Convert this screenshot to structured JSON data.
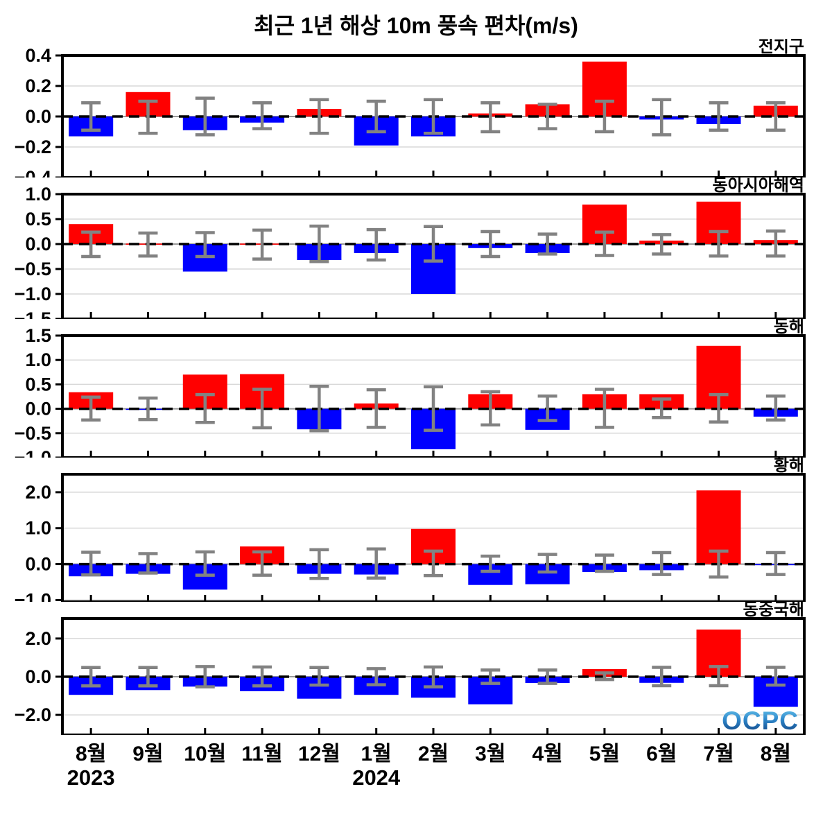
{
  "title": "최근 1년 해상 10m 풍속 편차(m/s)",
  "watermark": "OCPC",
  "x_axis": {
    "months": [
      "8월",
      "9월",
      "10월",
      "11월",
      "12월",
      "1월",
      "2월",
      "3월",
      "4월",
      "5월",
      "6월",
      "7월",
      "8월"
    ],
    "years": [
      {
        "label": "2023",
        "month_index": 0
      },
      {
        "label": "2024",
        "month_index": 5
      }
    ]
  },
  "colors": {
    "positive": "#ff0000",
    "negative": "#0000ff",
    "error_bar": "#828282",
    "grid": "#d8d8d8",
    "frame": "#000000",
    "zero_line": "#000000",
    "logo_top": "#6ec9ee",
    "logo_mid": "#2f89cc",
    "logo_bottom": "#0d3c7c"
  },
  "chart_data": [
    {
      "type": "bar",
      "region": "전지구",
      "ylim": [
        -0.4,
        0.4
      ],
      "ticks": [
        0.4,
        0.2,
        0.0,
        -0.2,
        -0.4
      ],
      "tick_labels": [
        "0.4",
        "0.2",
        "0.0",
        "−0.2",
        "−0.4"
      ],
      "values": [
        -0.13,
        0.16,
        -0.09,
        -0.04,
        0.05,
        -0.19,
        -0.13,
        0.02,
        0.08,
        0.36,
        -0.02,
        -0.05,
        0.07
      ],
      "err_hi": [
        0.09,
        0.1,
        0.12,
        0.09,
        0.11,
        0.1,
        0.11,
        0.09,
        0.08,
        0.1,
        0.11,
        0.09,
        0.09
      ],
      "err_lo": [
        0.09,
        0.11,
        0.12,
        0.08,
        0.11,
        0.1,
        0.11,
        0.1,
        0.08,
        0.1,
        0.12,
        0.09,
        0.09
      ]
    },
    {
      "type": "bar",
      "region": "동아시아해역",
      "ylim": [
        -1.5,
        1.0
      ],
      "ticks": [
        1.0,
        0.5,
        0.0,
        -0.5,
        -1.0,
        -1.5
      ],
      "tick_labels": [
        "1.0",
        "0.5",
        "0.0",
        "−0.5",
        "−1.0",
        "−1.5"
      ],
      "values": [
        0.4,
        0.01,
        -0.55,
        0.01,
        -0.32,
        -0.18,
        -1.0,
        -0.08,
        -0.18,
        0.79,
        0.07,
        0.85,
        0.08
      ],
      "err_hi": [
        0.24,
        0.22,
        0.23,
        0.28,
        0.36,
        0.29,
        0.35,
        0.25,
        0.2,
        0.24,
        0.19,
        0.25,
        0.26
      ],
      "err_lo": [
        0.25,
        0.24,
        0.25,
        0.3,
        0.35,
        0.32,
        0.34,
        0.25,
        0.2,
        0.23,
        0.2,
        0.24,
        0.24
      ]
    },
    {
      "type": "bar",
      "region": "동해",
      "ylim": [
        -1.0,
        1.5
      ],
      "ticks": [
        1.5,
        1.0,
        0.5,
        0.0,
        -0.5,
        -1.0
      ],
      "tick_labels": [
        "1.5",
        "1.0",
        "0.5",
        "0.0",
        "−0.5",
        "−1.0"
      ],
      "values": [
        0.34,
        -0.02,
        0.7,
        0.71,
        -0.42,
        0.11,
        -0.83,
        0.3,
        -0.43,
        0.3,
        0.3,
        1.29,
        -0.16
      ],
      "err_hi": [
        0.24,
        0.22,
        0.29,
        0.4,
        0.46,
        0.39,
        0.45,
        0.35,
        0.26,
        0.4,
        0.2,
        0.29,
        0.26
      ],
      "err_lo": [
        0.23,
        0.22,
        0.28,
        0.39,
        0.45,
        0.38,
        0.44,
        0.33,
        0.24,
        0.38,
        0.18,
        0.27,
        0.23
      ]
    },
    {
      "type": "bar",
      "region": "황해",
      "ylim": [
        -1.05,
        2.5
      ],
      "ticks": [
        2.0,
        1.0,
        0.0,
        -1.0
      ],
      "tick_labels": [
        "2.0",
        "1.0",
        "0.0",
        "−1.0"
      ],
      "values": [
        -0.34,
        -0.27,
        -0.71,
        0.49,
        -0.27,
        -0.29,
        0.98,
        -0.58,
        -0.56,
        -0.22,
        -0.17,
        2.05,
        -0.02
      ],
      "err_hi": [
        0.33,
        0.29,
        0.34,
        0.34,
        0.4,
        0.42,
        0.36,
        0.22,
        0.27,
        0.25,
        0.32,
        0.36,
        0.32
      ],
      "err_lo": [
        0.3,
        0.25,
        0.31,
        0.31,
        0.4,
        0.39,
        0.32,
        0.2,
        0.22,
        0.2,
        0.29,
        0.36,
        0.29
      ]
    },
    {
      "type": "bar",
      "region": "동중국해",
      "ylim": [
        -3.05,
        3.05
      ],
      "ticks": [
        2.0,
        0.0,
        -2.0
      ],
      "tick_labels": [
        "2.0",
        "0.0",
        "−2.0"
      ],
      "values": [
        -0.95,
        -0.7,
        -0.52,
        -0.76,
        -1.15,
        -0.95,
        -1.1,
        -1.45,
        -0.33,
        0.4,
        -0.32,
        2.47,
        -1.58
      ],
      "err_hi": [
        0.48,
        0.48,
        0.53,
        0.51,
        0.48,
        0.42,
        0.51,
        0.35,
        0.35,
        0.2,
        0.49,
        0.53,
        0.49
      ],
      "err_lo": [
        0.48,
        0.48,
        0.53,
        0.48,
        0.44,
        0.42,
        0.53,
        0.35,
        0.35,
        0.15,
        0.47,
        0.47,
        0.44
      ]
    }
  ]
}
